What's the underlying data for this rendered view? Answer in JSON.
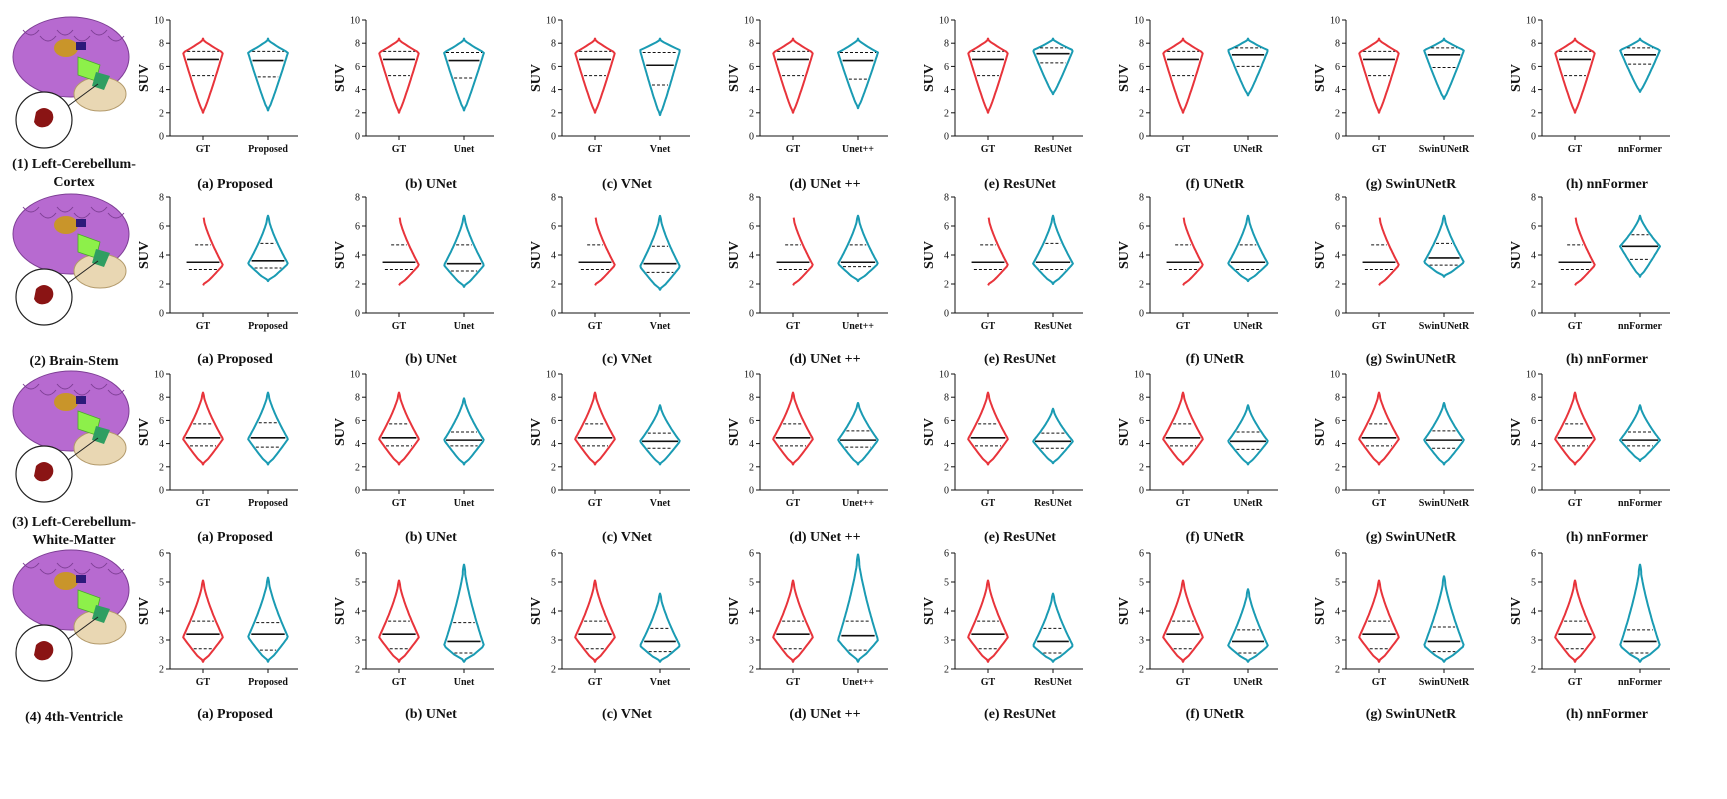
{
  "colors": {
    "gt": "#e8343b",
    "pred": "#1a9bb3"
  },
  "chart_data": {
    "type": "violin",
    "ylabel": "SUV",
    "rows": [
      {
        "label_lines": [
          "(1) Left-Cerebellum-",
          "Cortex"
        ],
        "ylim": [
          0,
          10
        ],
        "yticks": [
          0,
          2,
          4,
          6,
          8,
          10
        ],
        "gt": {
          "min": 2.0,
          "max": 8.4,
          "median": 6.6,
          "q1": 5.2,
          "q3": 7.3,
          "peak": 7.2
        },
        "panels": [
          {
            "caption": "(a) Proposed",
            "cat_gt": "GT",
            "cat_pred": "Proposed",
            "pred": {
              "min": 2.2,
              "max": 8.4,
              "median": 6.5,
              "q1": 5.1,
              "q3": 7.3,
              "peak": 7.2
            }
          },
          {
            "caption": "(b) UNet",
            "cat_gt": "GT",
            "cat_pred": "Unet",
            "pred": {
              "min": 2.2,
              "max": 8.4,
              "median": 6.5,
              "q1": 5.0,
              "q3": 7.2,
              "peak": 7.2
            }
          },
          {
            "caption": "(c) VNet",
            "cat_gt": "GT",
            "cat_pred": "Vnet",
            "pred": {
              "min": 1.8,
              "max": 8.4,
              "median": 6.1,
              "q1": 4.4,
              "q3": 7.2,
              "peak": 7.4
            }
          },
          {
            "caption": "(d) UNet ++",
            "cat_gt": "GT",
            "cat_pred": "Unet++",
            "pred": {
              "min": 2.4,
              "max": 8.4,
              "median": 6.5,
              "q1": 4.9,
              "q3": 7.2,
              "peak": 7.2
            }
          },
          {
            "caption": "(e) ResUNet",
            "cat_gt": "GT",
            "cat_pred": "ResUNet",
            "pred": {
              "min": 3.6,
              "max": 8.4,
              "median": 7.1,
              "q1": 6.3,
              "q3": 7.6,
              "peak": 7.4
            }
          },
          {
            "caption": "(f) UNetR",
            "cat_gt": "GT",
            "cat_pred": "UNetR",
            "pred": {
              "min": 3.5,
              "max": 8.4,
              "median": 7.0,
              "q1": 6.0,
              "q3": 7.6,
              "peak": 7.4
            }
          },
          {
            "caption": "(g) SwinUNetR",
            "cat_gt": "GT",
            "cat_pred": "SwinUNetR",
            "pred": {
              "min": 3.2,
              "max": 8.4,
              "median": 7.0,
              "q1": 5.9,
              "q3": 7.6,
              "peak": 7.4
            }
          },
          {
            "caption": "(h) nnFormer",
            "cat_gt": "GT",
            "cat_pred": "nnFormer",
            "pred": {
              "min": 3.8,
              "max": 8.4,
              "median": 7.0,
              "q1": 6.2,
              "q3": 7.6,
              "peak": 7.4
            }
          }
        ]
      },
      {
        "label_lines": [
          "(2) Brain-Stem"
        ],
        "ylim": [
          0,
          8
        ],
        "yticks": [
          0,
          2,
          4,
          6,
          8
        ],
        "gt": {
          "min": 1.9,
          "max": 6.7,
          "median": 3.5,
          "q1": 3.0,
          "q3": 4.7,
          "peak": 3.3
        },
        "panels": [
          {
            "caption": "(a) Proposed",
            "cat_gt": "GT",
            "cat_pred": "Proposed",
            "pred": {
              "min": 2.2,
              "max": 6.7,
              "median": 3.6,
              "q1": 3.1,
              "q3": 4.8,
              "peak": 3.4
            }
          },
          {
            "caption": "(b) UNet",
            "cat_gt": "GT",
            "cat_pred": "Unet",
            "pred": {
              "min": 1.8,
              "max": 6.7,
              "median": 3.4,
              "q1": 2.9,
              "q3": 4.7,
              "peak": 3.3
            }
          },
          {
            "caption": "(c) VNet",
            "cat_gt": "GT",
            "cat_pred": "Vnet",
            "pred": {
              "min": 1.6,
              "max": 6.7,
              "median": 3.4,
              "q1": 2.8,
              "q3": 4.6,
              "peak": 3.2
            }
          },
          {
            "caption": "(d) UNet ++",
            "cat_gt": "GT",
            "cat_pred": "Unet++",
            "pred": {
              "min": 2.2,
              "max": 6.7,
              "median": 3.5,
              "q1": 3.2,
              "q3": 4.7,
              "peak": 3.4
            }
          },
          {
            "caption": "(e) ResUNet",
            "cat_gt": "GT",
            "cat_pred": "ResUNet",
            "pred": {
              "min": 2.0,
              "max": 6.7,
              "median": 3.5,
              "q1": 3.0,
              "q3": 4.8,
              "peak": 3.4
            }
          },
          {
            "caption": "(f) UNetR",
            "cat_gt": "GT",
            "cat_pred": "UNetR",
            "pred": {
              "min": 2.2,
              "max": 6.7,
              "median": 3.5,
              "q1": 3.0,
              "q3": 4.7,
              "peak": 3.4
            }
          },
          {
            "caption": "(g) SwinUNetR",
            "cat_gt": "GT",
            "cat_pred": "SwinUNetR",
            "pred": {
              "min": 2.5,
              "max": 6.7,
              "median": 3.8,
              "q1": 3.3,
              "q3": 4.8,
              "peak": 3.5
            }
          },
          {
            "caption": "(h) nnFormer",
            "cat_gt": "GT",
            "cat_pred": "nnFormer",
            "pred": {
              "min": 2.5,
              "max": 6.7,
              "median": 4.6,
              "q1": 3.7,
              "q3": 5.4,
              "peak": 4.6
            }
          }
        ]
      },
      {
        "label_lines": [
          "(3) Left-Cerebellum-",
          "White-Matter"
        ],
        "ylim": [
          0,
          10
        ],
        "yticks": [
          0,
          2,
          4,
          6,
          8,
          10
        ],
        "gt": {
          "min": 2.2,
          "max": 8.4,
          "median": 4.5,
          "q1": 3.8,
          "q3": 5.7,
          "peak": 4.4
        },
        "panels": [
          {
            "caption": "(a) Proposed",
            "cat_gt": "GT",
            "cat_pred": "Proposed",
            "pred": {
              "min": 2.2,
              "max": 8.4,
              "median": 4.5,
              "q1": 3.7,
              "q3": 5.8,
              "peak": 4.4
            }
          },
          {
            "caption": "(b) UNet",
            "cat_gt": "GT",
            "cat_pred": "Unet",
            "pred": {
              "min": 2.2,
              "max": 7.9,
              "median": 4.3,
              "q1": 3.8,
              "q3": 5.0,
              "peak": 4.3
            }
          },
          {
            "caption": "(c) VNet",
            "cat_gt": "GT",
            "cat_pred": "Vnet",
            "pred": {
              "min": 2.2,
              "max": 7.3,
              "median": 4.2,
              "q1": 3.6,
              "q3": 4.9,
              "peak": 4.2
            }
          },
          {
            "caption": "(d) UNet ++",
            "cat_gt": "GT",
            "cat_pred": "Unet++",
            "pred": {
              "min": 2.2,
              "max": 7.5,
              "median": 4.3,
              "q1": 3.7,
              "q3": 5.1,
              "peak": 4.3
            }
          },
          {
            "caption": "(e) ResUNet",
            "cat_gt": "GT",
            "cat_pred": "ResUNet",
            "pred": {
              "min": 2.3,
              "max": 7.0,
              "median": 4.2,
              "q1": 3.6,
              "q3": 4.9,
              "peak": 4.2
            }
          },
          {
            "caption": "(f) UNetR",
            "cat_gt": "GT",
            "cat_pred": "UNetR",
            "pred": {
              "min": 2.2,
              "max": 7.3,
              "median": 4.2,
              "q1": 3.5,
              "q3": 5.0,
              "peak": 4.2
            }
          },
          {
            "caption": "(g) SwinUNetR",
            "cat_gt": "GT",
            "cat_pred": "SwinUNetR",
            "pred": {
              "min": 2.2,
              "max": 7.5,
              "median": 4.3,
              "q1": 3.6,
              "q3": 5.1,
              "peak": 4.3
            }
          },
          {
            "caption": "(h) nnFormer",
            "cat_gt": "GT",
            "cat_pred": "nnFormer",
            "pred": {
              "min": 2.5,
              "max": 7.3,
              "median": 4.3,
              "q1": 3.8,
              "q3": 5.0,
              "peak": 4.3
            }
          }
        ]
      },
      {
        "label_lines": [
          "(4) 4th-Ventricle"
        ],
        "ylim": [
          2,
          6
        ],
        "yticks": [
          2,
          3,
          4,
          5,
          6
        ],
        "gt": {
          "min": 2.25,
          "max": 5.05,
          "median": 3.2,
          "q1": 2.7,
          "q3": 3.65,
          "peak": 3.1
        },
        "panels": [
          {
            "caption": "(a) Proposed",
            "cat_gt": "GT",
            "cat_pred": "Proposed",
            "pred": {
              "min": 2.25,
              "max": 5.15,
              "median": 3.2,
              "q1": 2.65,
              "q3": 3.6,
              "peak": 3.1
            }
          },
          {
            "caption": "(b) UNet",
            "cat_gt": "GT",
            "cat_pred": "Unet",
            "pred": {
              "min": 2.25,
              "max": 5.6,
              "median": 2.95,
              "q1": 2.55,
              "q3": 3.6,
              "peak": 2.8
            }
          },
          {
            "caption": "(c) VNet",
            "cat_gt": "GT",
            "cat_pred": "Vnet",
            "pred": {
              "min": 2.25,
              "max": 4.6,
              "median": 2.95,
              "q1": 2.6,
              "q3": 3.4,
              "peak": 2.8
            }
          },
          {
            "caption": "(d) UNet ++",
            "cat_gt": "GT",
            "cat_pred": "Unet++",
            "pred": {
              "min": 2.25,
              "max": 5.95,
              "median": 3.15,
              "q1": 2.65,
              "q3": 3.65,
              "peak": 3.0
            }
          },
          {
            "caption": "(e) ResUNet",
            "cat_gt": "GT",
            "cat_pred": "ResUNet",
            "pred": {
              "min": 2.25,
              "max": 4.6,
              "median": 2.95,
              "q1": 2.55,
              "q3": 3.4,
              "peak": 2.8
            }
          },
          {
            "caption": "(f) UNetR",
            "cat_gt": "GT",
            "cat_pred": "UNetR",
            "pred": {
              "min": 2.25,
              "max": 4.75,
              "median": 2.95,
              "q1": 2.55,
              "q3": 3.35,
              "peak": 2.8
            }
          },
          {
            "caption": "(g) SwinUNetR",
            "cat_gt": "GT",
            "cat_pred": "SwinUNetR",
            "pred": {
              "min": 2.25,
              "max": 5.2,
              "median": 2.95,
              "q1": 2.6,
              "q3": 3.45,
              "peak": 2.8
            }
          },
          {
            "caption": "(h) nnFormer",
            "cat_gt": "GT",
            "cat_pred": "nnFormer",
            "pred": {
              "min": 2.25,
              "max": 5.6,
              "median": 2.95,
              "q1": 2.55,
              "q3": 3.35,
              "peak": 2.8
            }
          }
        ]
      }
    ]
  }
}
